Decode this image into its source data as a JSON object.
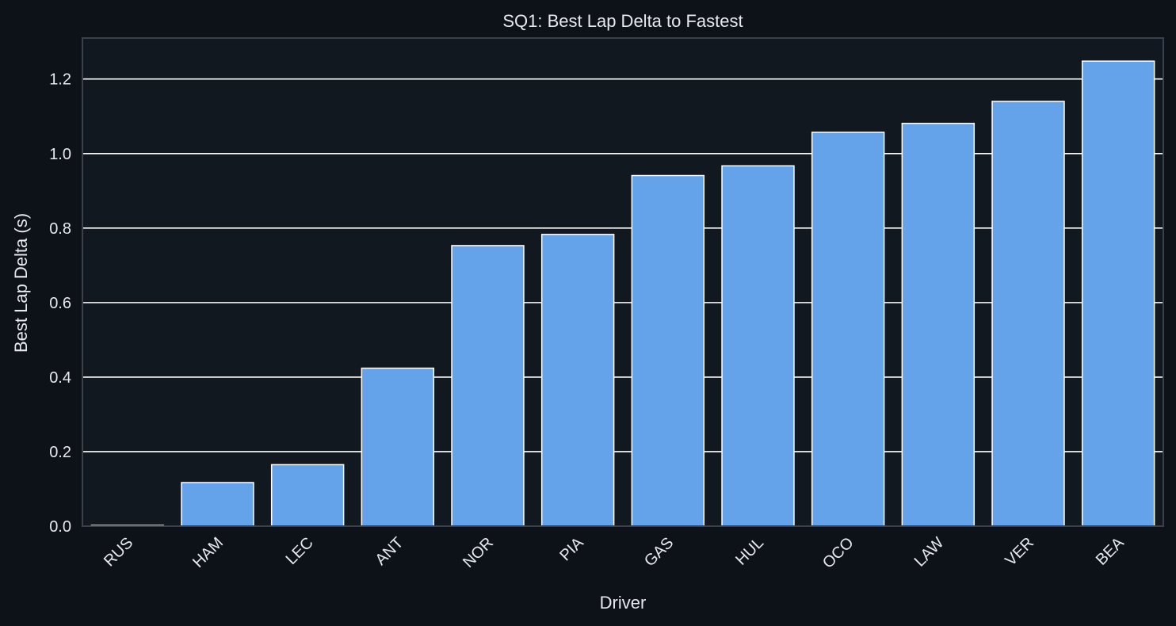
{
  "chart_data": {
    "type": "bar",
    "title": "SQ1: Best Lap Delta to Fastest",
    "xlabel": "Driver",
    "ylabel": "Best Lap Delta (s)",
    "categories": [
      "RUS",
      "HAM",
      "LEC",
      "ANT",
      "NOR",
      "PIA",
      "GAS",
      "HUL",
      "OCO",
      "LAW",
      "VER",
      "BEA"
    ],
    "values": [
      0.0,
      0.117,
      0.165,
      0.424,
      0.753,
      0.783,
      0.941,
      0.967,
      1.057,
      1.081,
      1.14,
      1.248
    ],
    "ylim": [
      0,
      1.31
    ],
    "yticks": [
      "0.0",
      "0.2",
      "0.4",
      "0.6",
      "0.8",
      "1.0",
      "1.2"
    ],
    "grid": "horizontal",
    "colors": {
      "bar": "#64a3ea",
      "bar_edge": "#ffffff",
      "plot_bg": "#121820",
      "page_bg": "#0d1118",
      "grid": "#ffffff",
      "frame": "#3a414d",
      "text": "#e6e9ee"
    }
  }
}
